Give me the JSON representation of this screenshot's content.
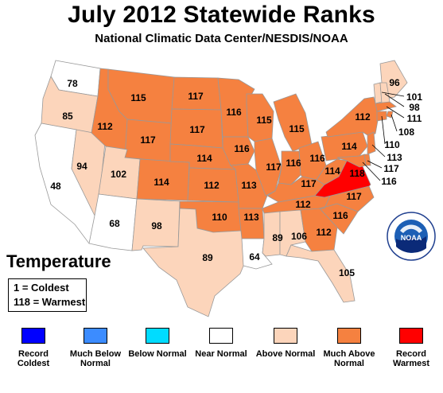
{
  "title": "July 2012 Statewide Ranks",
  "subtitle": "National Climatic Data Center/NESDIS/NOAA",
  "map_label": "Temperature",
  "key": {
    "coldest": "1 = Coldest",
    "warmest": "118 = Warmest"
  },
  "logo_text": "NOAA",
  "colors": {
    "record_coldest": "#0000ff",
    "much_below": "#3c8cff",
    "below": "#00dcff",
    "near": "#ffffff",
    "above": "#fcd5bb",
    "much_above": "#f58140",
    "record_warmest": "#ff0000",
    "state_border": "#999999"
  },
  "legend": [
    {
      "label": "Record Coldest",
      "color": "#0000ff"
    },
    {
      "label": "Much Below Normal",
      "color": "#3c8cff"
    },
    {
      "label": "Below Normal",
      "color": "#00dcff"
    },
    {
      "label": "Near Normal",
      "color": "#ffffff"
    },
    {
      "label": "Above Normal",
      "color": "#fcd5bb"
    },
    {
      "label": "Much Above Normal",
      "color": "#f58140"
    },
    {
      "label": "Record Warmest",
      "color": "#ff0000"
    }
  ],
  "states": [
    {
      "state": "WA",
      "rank": "78",
      "category": "near"
    },
    {
      "state": "OR",
      "rank": "85",
      "category": "above"
    },
    {
      "state": "CA",
      "rank": "48",
      "category": "near"
    },
    {
      "state": "NV",
      "rank": "94",
      "category": "above"
    },
    {
      "state": "ID",
      "rank": "112",
      "category": "much_above"
    },
    {
      "state": "MT",
      "rank": "115",
      "category": "much_above"
    },
    {
      "state": "WY",
      "rank": "117",
      "category": "much_above"
    },
    {
      "state": "UT",
      "rank": "102",
      "category": "above"
    },
    {
      "state": "AZ",
      "rank": "68",
      "category": "near"
    },
    {
      "state": "CO",
      "rank": "114",
      "category": "much_above"
    },
    {
      "state": "NM",
      "rank": "98",
      "category": "above"
    },
    {
      "state": "ND",
      "rank": "117",
      "category": "much_above"
    },
    {
      "state": "SD",
      "rank": "117",
      "category": "much_above"
    },
    {
      "state": "NE",
      "rank": "114",
      "category": "much_above"
    },
    {
      "state": "KS",
      "rank": "112",
      "category": "much_above"
    },
    {
      "state": "OK",
      "rank": "110",
      "category": "much_above"
    },
    {
      "state": "TX",
      "rank": "89",
      "category": "above"
    },
    {
      "state": "MN",
      "rank": "116",
      "category": "much_above"
    },
    {
      "state": "IA",
      "rank": "116",
      "category": "much_above"
    },
    {
      "state": "MO",
      "rank": "113",
      "category": "much_above"
    },
    {
      "state": "AR",
      "rank": "113",
      "category": "much_above"
    },
    {
      "state": "LA",
      "rank": "64",
      "category": "near"
    },
    {
      "state": "WI",
      "rank": "115",
      "category": "much_above"
    },
    {
      "state": "IL",
      "rank": "117",
      "category": "much_above"
    },
    {
      "state": "MI",
      "rank": "115",
      "category": "much_above"
    },
    {
      "state": "IN",
      "rank": "116",
      "category": "much_above"
    },
    {
      "state": "OH",
      "rank": "116",
      "category": "much_above"
    },
    {
      "state": "KY",
      "rank": "117",
      "category": "much_above"
    },
    {
      "state": "TN",
      "rank": "112",
      "category": "much_above"
    },
    {
      "state": "MS",
      "rank": "89",
      "category": "above"
    },
    {
      "state": "AL",
      "rank": "106",
      "category": "above"
    },
    {
      "state": "GA",
      "rank": "112",
      "category": "much_above"
    },
    {
      "state": "FL",
      "rank": "105",
      "category": "above"
    },
    {
      "state": "SC",
      "rank": "116",
      "category": "much_above"
    },
    {
      "state": "NC",
      "rank": "117",
      "category": "much_above"
    },
    {
      "state": "VA",
      "rank": "118",
      "category": "record_warmest"
    },
    {
      "state": "WV",
      "rank": "114",
      "category": "much_above"
    },
    {
      "state": "PA",
      "rank": "114",
      "category": "much_above"
    },
    {
      "state": "NY",
      "rank": "112",
      "category": "much_above"
    },
    {
      "state": "ME",
      "rank": "96",
      "category": "above"
    },
    {
      "state": "VT",
      "rank": "101",
      "category": "above"
    },
    {
      "state": "NH",
      "rank": "98",
      "category": "above"
    },
    {
      "state": "MA",
      "rank": "111",
      "category": "much_above"
    },
    {
      "state": "RI",
      "rank": "108",
      "category": "much_above"
    },
    {
      "state": "CT",
      "rank": "110",
      "category": "much_above"
    },
    {
      "state": "NJ",
      "rank": "113",
      "category": "much_above"
    },
    {
      "state": "DE",
      "rank": "117",
      "category": "much_above"
    },
    {
      "state": "MD",
      "rank": "116",
      "category": "much_above"
    }
  ]
}
